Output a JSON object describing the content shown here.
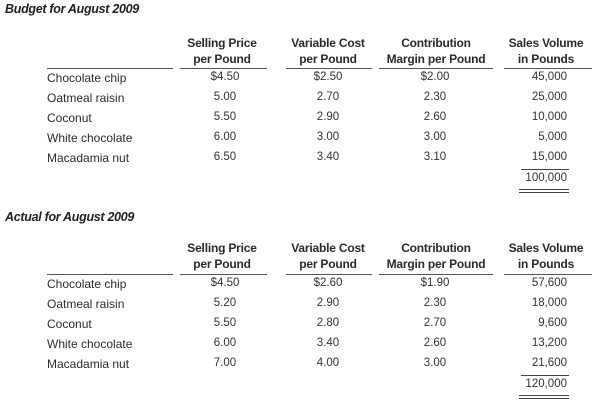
{
  "budget": {
    "title": "Budget for August 2009",
    "headers": {
      "price": [
        "Selling Price",
        "per Pound"
      ],
      "varcost": [
        "Variable Cost",
        "per Pound"
      ],
      "contrib": [
        "Contribution",
        "Margin per Pound"
      ],
      "volume": [
        "Sales Volume",
        "in Pounds"
      ]
    },
    "rows": [
      {
        "name": "Chocolate chip",
        "price": "$4.50",
        "varcost": "$2.50",
        "contrib": "$2.00",
        "volume": "45,000"
      },
      {
        "name": "Oatmeal raisin",
        "price": "5.00",
        "varcost": "2.70",
        "contrib": "2.30",
        "volume": "25,000"
      },
      {
        "name": "Coconut",
        "price": "5.50",
        "varcost": "2.90",
        "contrib": "2.60",
        "volume": "10,000"
      },
      {
        "name": "White chocolate",
        "price": "6.00",
        "varcost": "3.00",
        "contrib": "3.00",
        "volume": "5,000"
      },
      {
        "name": "Macadamia nut",
        "price": "6.50",
        "varcost": "3.40",
        "contrib": "3.10",
        "volume": "15,000"
      }
    ],
    "total_volume": "100,000"
  },
  "actual": {
    "title": "Actual for August 2009",
    "headers": {
      "price": [
        "Selling Price",
        "per Pound"
      ],
      "varcost": [
        "Variable Cost",
        "per Pound"
      ],
      "contrib": [
        "Contribution",
        "Margin per Pound"
      ],
      "volume": [
        "Sales Volume",
        "in Pounds"
      ]
    },
    "rows": [
      {
        "name": "Chocolate chip",
        "price": "$4.50",
        "varcost": "$2.60",
        "contrib": "$1.90",
        "volume": "57,600"
      },
      {
        "name": "Oatmeal raisin",
        "price": "5.20",
        "varcost": "2.90",
        "contrib": "2.30",
        "volume": "18,000"
      },
      {
        "name": "Coconut",
        "price": "5.50",
        "varcost": "2.80",
        "contrib": "2.70",
        "volume": "9,600"
      },
      {
        "name": "White chocolate",
        "price": "6.00",
        "varcost": "3.40",
        "contrib": "2.60",
        "volume": "13,200"
      },
      {
        "name": "Macadamia nut",
        "price": "7.00",
        "varcost": "4.00",
        "contrib": "3.00",
        "volume": "21,600"
      }
    ],
    "total_volume": "120,000"
  }
}
